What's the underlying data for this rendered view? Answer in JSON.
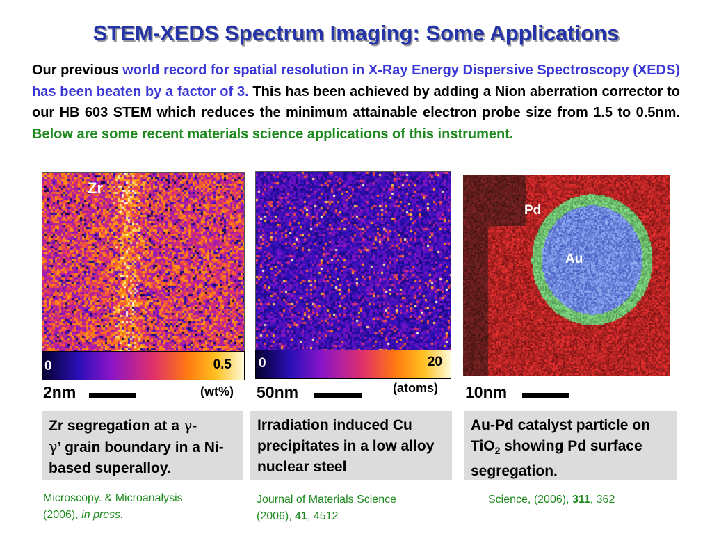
{
  "title": "STEM-XEDS Spectrum Imaging: Some Applications",
  "intro": {
    "part1": "Our previous ",
    "part2_blue": "world record for spatial resolution in X-Ray Energy Dispersive Spectroscopy (XEDS) has been beaten by a factor of 3.",
    "part3": " This has been achieved by adding a Nion aberration corrector to our HB 603 STEM which reduces the minimum attainable electron probe size from 1.5 to 0.5nm. ",
    "part4_green": "Below are some recent materials science applications of this instrument."
  },
  "panels": [
    {
      "label": "Zr",
      "colorbar_min": "0",
      "colorbar_max": "0.5",
      "unit": "(wt%)",
      "scale": "2nm",
      "caption_a": "Zr segregation at a ",
      "caption_gamma1": "γ",
      "caption_b": "-",
      "caption_gamma2": "γ",
      "caption_c": "’ grain boundary in a Ni- based superalloy.",
      "ref_line1": "Microscopy. & Microanalysis",
      "ref_line2a": "(2006), ",
      "ref_line2b": "in press."
    },
    {
      "colorbar_min": "0",
      "colorbar_max": "20",
      "unit": "(atoms)",
      "scale": "50nm",
      "caption": "Irradiation induced Cu precipitates in a low alloy nuclear steel",
      "ref_line1": "Journal of Materials Science",
      "ref_line2a": "(2006), ",
      "ref_vol": "41",
      "ref_page": ", 4512"
    },
    {
      "label_pd": "Pd",
      "label_au": "Au",
      "scale": "10nm",
      "caption_a": "Au-Pd catalyst particle on TiO",
      "caption_sub": "2",
      "caption_b": " showing Pd surface segregation.",
      "ref_a": "Science, (2006), ",
      "ref_vol": "311",
      "ref_page": ", 362"
    }
  ]
}
